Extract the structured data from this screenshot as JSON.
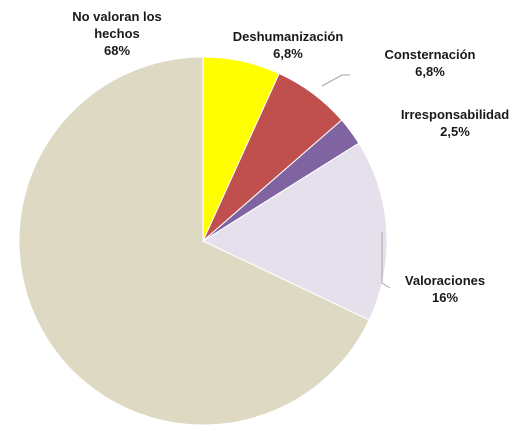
{
  "chart_data": {
    "type": "pie",
    "categories": [
      "Deshumanización",
      "Consternación",
      "Irresponsabilidad",
      "Valoraciones",
      "No valoran los hechos"
    ],
    "values": [
      6.8,
      6.8,
      2.5,
      16,
      68
    ],
    "value_labels": [
      "6,8%",
      "6,8%",
      "2,5%",
      "16%",
      "68%"
    ],
    "colors": [
      "#ffff00",
      "#c0504d",
      "#8064a2",
      "#e6e0ec",
      "#ddd9c3"
    ]
  }
}
